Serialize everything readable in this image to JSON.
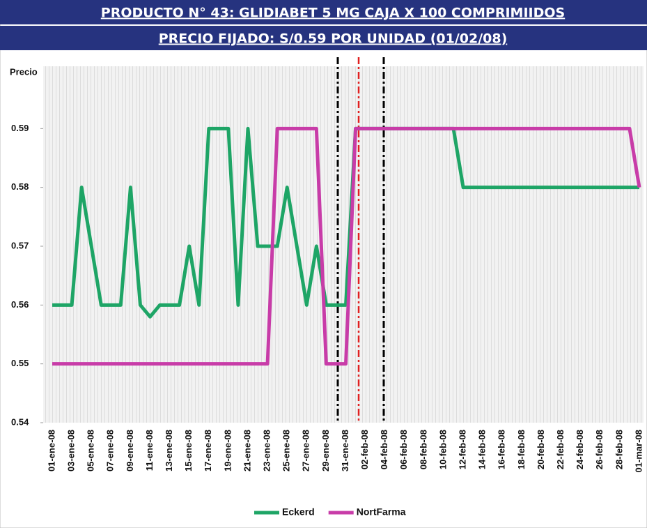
{
  "chart_data": {
    "type": "line",
    "title": "PRODUCTO N° 43: GLIDIABET 5 MG CAJA X 100 COMPRIMIIDOS",
    "subtitle": "PRECIO FIJADO: S/0.59 POR UNIDAD (01/02/08)",
    "y_label": "Precio",
    "categories": [
      "01-ene-08",
      null,
      "03-ene-08",
      null,
      "05-ene-08",
      null,
      "07-ene-08",
      null,
      "09-ene-08",
      null,
      "11-ene-08",
      null,
      "13-ene-08",
      null,
      "15-ene-08",
      null,
      "17-ene-08",
      null,
      "19-ene-08",
      null,
      "21-ene-08",
      null,
      "23-ene-08",
      null,
      "25-ene-08",
      null,
      "27-ene-08",
      null,
      "29-ene-08",
      null,
      "31-ene-08",
      null,
      "02-feb-08",
      null,
      "04-feb-08",
      null,
      "06-feb-08",
      null,
      "08-feb-08",
      null,
      "10-feb-08",
      null,
      "12-feb-08",
      null,
      "14-feb-08",
      null,
      "16-feb-08",
      null,
      "18-feb-08",
      null,
      "20-feb-08",
      null,
      "22-feb-08",
      null,
      "24-feb-08",
      null,
      "26-feb-08",
      null,
      "28-feb-08",
      null,
      "01-mar-08"
    ],
    "series": [
      {
        "name": "Eckerd",
        "color": "#1ea566",
        "values": [
          0.56,
          0.56,
          0.56,
          0.58,
          0.57,
          0.56,
          0.56,
          0.56,
          0.58,
          0.56,
          0.558,
          0.56,
          0.56,
          0.56,
          0.57,
          0.56,
          0.59,
          0.59,
          0.59,
          0.56,
          0.59,
          0.57,
          0.57,
          0.57,
          0.58,
          0.57,
          0.56,
          0.57,
          0.56,
          0.56,
          0.56,
          0.59,
          0.59,
          0.59,
          0.59,
          0.59,
          0.59,
          0.59,
          0.59,
          0.59,
          0.59,
          0.59,
          0.58,
          0.58,
          0.58,
          0.58,
          0.58,
          0.58,
          0.58,
          0.58,
          0.58,
          0.58,
          0.58,
          0.58,
          0.58,
          0.58,
          0.58,
          0.58,
          0.58,
          0.58,
          0.58
        ]
      },
      {
        "name": "NortFarma",
        "color": "#c83ca8",
        "values": [
          0.55,
          0.55,
          0.55,
          0.55,
          0.55,
          0.55,
          0.55,
          0.55,
          0.55,
          0.55,
          0.55,
          0.55,
          0.55,
          0.55,
          0.55,
          0.55,
          0.55,
          0.55,
          0.55,
          0.55,
          0.55,
          0.55,
          0.55,
          0.59,
          0.59,
          0.59,
          0.59,
          0.59,
          0.55,
          0.55,
          0.55,
          0.59,
          0.59,
          0.59,
          0.59,
          0.59,
          0.59,
          0.59,
          0.59,
          0.59,
          0.59,
          0.59,
          0.59,
          0.59,
          0.59,
          0.59,
          0.59,
          0.59,
          0.59,
          0.59,
          0.59,
          0.59,
          0.59,
          0.59,
          0.59,
          0.59,
          0.59,
          0.59,
          0.59,
          0.59,
          0.58
        ]
      }
    ],
    "ylim": [
      0.54,
      0.6
    ],
    "yticks": [
      0.54,
      0.55,
      0.56,
      0.57,
      0.58,
      0.59
    ],
    "legend": "bottom"
  }
}
